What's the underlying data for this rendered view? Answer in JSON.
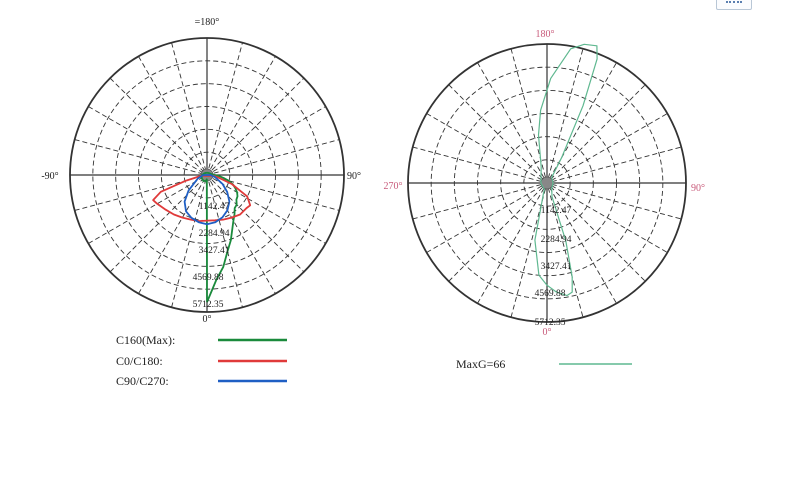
{
  "corner_button": {
    "icon": "more-icon"
  },
  "chart_data": [
    {
      "type": "polar",
      "angle_labels": {
        "top": "=180°",
        "left": "-90°",
        "right": "90°",
        "bottom": "0°"
      },
      "radial_tick_labels": [
        "1142.47",
        "2284.94",
        "3427.41",
        "4569.88",
        "5712.35"
      ],
      "rmax": 5712.35,
      "rings": 6,
      "spokes_every_deg": 15,
      "grid": true,
      "series": [
        {
          "name": "C160(Max):",
          "color": "#1a8a3c",
          "points": [
            [
              0,
              5300
            ],
            [
              5,
              4400
            ],
            [
              10,
              3900
            ],
            [
              15,
              3300
            ],
            [
              20,
              2900
            ],
            [
              30,
              2200
            ],
            [
              35,
              2000
            ],
            [
              40,
              1800
            ],
            [
              45,
              1750
            ],
            [
              50,
              1600
            ],
            [
              55,
              1550
            ],
            [
              60,
              1450
            ],
            [
              65,
              1300
            ],
            [
              70,
              1150
            ],
            [
              75,
              950
            ],
            [
              80,
              700
            ],
            [
              85,
              500
            ],
            [
              90,
              320
            ],
            [
              100,
              200
            ],
            [
              120,
              130
            ],
            [
              150,
              100
            ],
            [
              180,
              90
            ],
            [
              210,
              100
            ],
            [
              240,
              130
            ],
            [
              270,
              200
            ],
            [
              300,
              260
            ],
            [
              330,
              290
            ],
            [
              350,
              250
            ],
            [
              358,
              180
            ]
          ]
        },
        {
          "name": "C0/C180:",
          "color": "#e03a3a",
          "points": [
            [
              -82,
              260
            ],
            [
              -75,
              900
            ],
            [
              -70,
              2050
            ],
            [
              -65,
              2480
            ],
            [
              -60,
              2400
            ],
            [
              -50,
              2250
            ],
            [
              -40,
              2150
            ],
            [
              -30,
              2050
            ],
            [
              -20,
              1980
            ],
            [
              -10,
              1950
            ],
            [
              0,
              1900
            ],
            [
              10,
              1920
            ],
            [
              20,
              1980
            ],
            [
              30,
              2050
            ],
            [
              40,
              2150
            ],
            [
              50,
              2150
            ],
            [
              55,
              2200
            ],
            [
              62,
              1900
            ],
            [
              70,
              1100
            ],
            [
              78,
              450
            ],
            [
              82,
              250
            ]
          ]
        },
        {
          "name": "C90/C270:",
          "color": "#1f5fc4",
          "points": [
            [
              -90,
              150
            ],
            [
              -70,
              400
            ],
            [
              -50,
              1000
            ],
            [
              -40,
              1450
            ],
            [
              -30,
              1750
            ],
            [
              -20,
              1900
            ],
            [
              -10,
              2000
            ],
            [
              0,
              2050
            ],
            [
              10,
              2000
            ],
            [
              20,
              1880
            ],
            [
              30,
              1700
            ],
            [
              40,
              1450
            ],
            [
              50,
              1100
            ],
            [
              60,
              750
            ],
            [
              75,
              350
            ],
            [
              90,
              150
            ]
          ]
        }
      ]
    },
    {
      "type": "polar",
      "angle_labels": {
        "top": "180°",
        "left": "270°",
        "right": "90°",
        "bottom": "0°"
      },
      "radial_tick_labels": [
        "1142.47",
        "2284.94",
        "3427.41",
        "4569.88",
        "5712.35"
      ],
      "rmax": 5712.35,
      "rings": 6,
      "spokes_every_deg": 15,
      "grid": true,
      "series": [
        {
          "name": "MaxG=66",
          "color": "#5fb890",
          "points": [
            [
              -20,
              400
            ],
            [
              -12,
              2400
            ],
            [
              -5,
              3800
            ],
            [
              0,
              4200
            ],
            [
              5,
              4500
            ],
            [
              10,
              4700
            ],
            [
              13,
              4600
            ],
            [
              15,
              4000
            ],
            [
              18,
              2500
            ],
            [
              20,
              600
            ],
            [
              40,
              300
            ],
            [
              90,
              250
            ],
            [
              140,
              300
            ],
            [
              150,
              1200
            ],
            [
              155,
              3500
            ],
            [
              158,
              5500
            ],
            [
              160,
              6000
            ],
            [
              165,
              5900
            ],
            [
              170,
              5600
            ],
            [
              178,
              4300
            ],
            [
              185,
              3000
            ],
            [
              190,
              2000
            ],
            [
              200,
              700
            ],
            [
              270,
              250
            ],
            [
              340,
              300
            ]
          ]
        }
      ]
    }
  ]
}
